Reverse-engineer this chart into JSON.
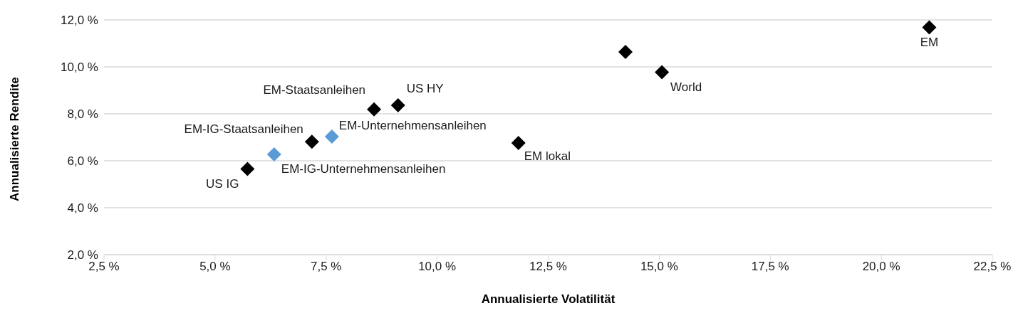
{
  "chart_data": {
    "type": "scatter",
    "xlabel": "Annualisierte Volatilität",
    "ylabel": "Annualisierte Rendite",
    "series": [
      {
        "name": "US IG",
        "color": "#000000",
        "x": [
          5.73
        ],
        "values": [
          5.65
        ]
      },
      {
        "name": "EM-IG-Unternehmensanleihen",
        "color": "#5b9bd5",
        "x": [
          6.33
        ],
        "values": [
          6.27
        ]
      },
      {
        "name": "EM-IG-Staatsanleihen",
        "color": "#000000",
        "x": [
          7.18
        ],
        "values": [
          6.81
        ]
      },
      {
        "name": "EM-Unternehmensanleihen",
        "color": "#5b9bd5",
        "x": [
          7.63
        ],
        "values": [
          7.03
        ]
      },
      {
        "name": "EM-Staatsanleihen",
        "color": "#000000",
        "x": [
          8.58
        ],
        "values": [
          8.19
        ]
      },
      {
        "name": "US HY",
        "color": "#000000",
        "x": [
          9.12
        ],
        "values": [
          8.36
        ]
      },
      {
        "name": "EM lokal",
        "color": "#000000",
        "x": [
          11.83
        ],
        "values": [
          6.76
        ]
      },
      {
        "color": "#000000",
        "x": [
          14.24
        ],
        "values": [
          10.64
        ]
      },
      {
        "name": "World",
        "color": "#000000",
        "x": [
          15.06
        ],
        "values": [
          9.77
        ]
      },
      {
        "name": "EM",
        "color": "#000000",
        "x": [
          21.08
        ],
        "values": [
          11.68
        ]
      }
    ],
    "xlim": [
      2.5,
      22.5
    ],
    "xticks": [
      {
        "value": 2.5,
        "label": "2,5 %"
      },
      {
        "value": 5,
        "label": "5,0 %"
      },
      {
        "value": 7.5,
        "label": "7,5 %"
      },
      {
        "value": 10,
        "label": "10,0 %"
      },
      {
        "value": 12.5,
        "label": "12,5 %"
      },
      {
        "value": 15,
        "label": "15,0 %"
      },
      {
        "value": 17.5,
        "label": "17,5 %"
      },
      {
        "value": 20,
        "label": "20,0 %"
      },
      {
        "value": 22.5,
        "label": "22,5 %"
      }
    ],
    "ylim": [
      2,
      12
    ],
    "yticks": [
      {
        "value": 2,
        "label": "2,0 %"
      },
      {
        "value": 4,
        "label": "4,0 %"
      },
      {
        "value": 6,
        "label": "6,0 %"
      },
      {
        "value": 8,
        "label": "8,0 %"
      },
      {
        "value": 10,
        "label": "10,0 %"
      },
      {
        "value": 12,
        "label": "12,0 %"
      }
    ],
    "grid": "y",
    "legend": false,
    "marker": "diamond"
  }
}
